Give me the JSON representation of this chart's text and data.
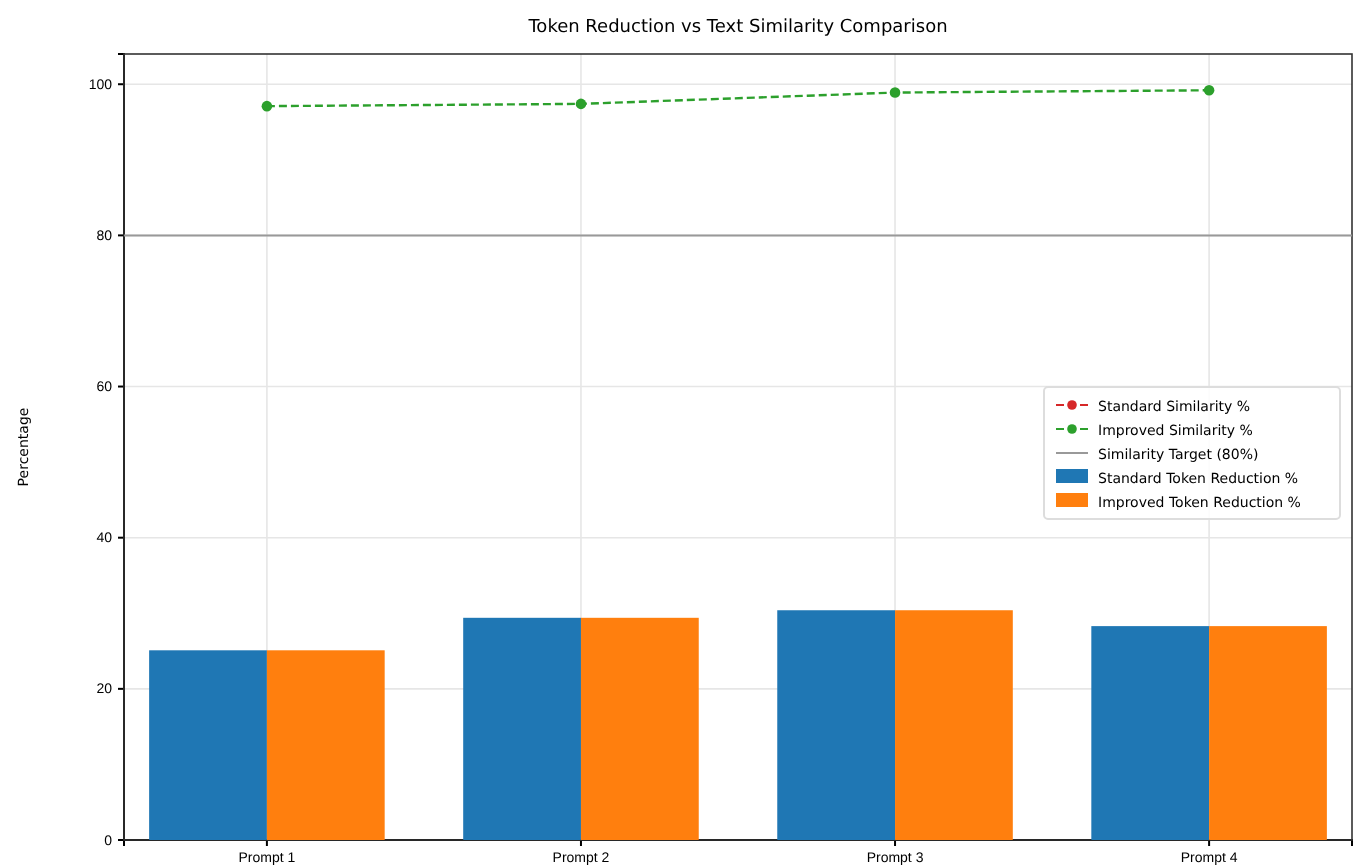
{
  "chart_data": {
    "type": "bar",
    "title": "Token Reduction vs Text Similarity Comparison",
    "ylabel": "Percentage",
    "categories": [
      "Prompt 1",
      "Prompt 2",
      "Prompt 3",
      "Prompt 4"
    ],
    "series": [
      {
        "name": "Standard Similarity %",
        "type": "line",
        "color": "#d62728",
        "values": [
          null,
          null,
          null,
          null
        ],
        "marker": "circle",
        "line_style": "dashed"
      },
      {
        "name": "Improved Similarity %",
        "type": "line",
        "color": "#2ca02c",
        "values": [
          97.1,
          97.4,
          98.9,
          99.2
        ],
        "marker": "circle",
        "line_style": "dashed"
      },
      {
        "name": "Standard Token Reduction %",
        "color": "#1f77b4",
        "values": [
          25.1,
          29.4,
          30.4,
          28.3
        ]
      },
      {
        "name": "Improved Token Reduction %",
        "color": "#ff7f0e",
        "values": [
          25.1,
          29.4,
          30.4,
          28.3
        ]
      }
    ],
    "ref_lines": [
      {
        "axis": "y",
        "value": 80,
        "label": "Similarity Target (80%)",
        "color": "#999999"
      }
    ],
    "ylim": [
      0,
      104
    ],
    "yticks": [
      0,
      20,
      40,
      60,
      80,
      100
    ],
    "grid": true,
    "legend": "right"
  }
}
